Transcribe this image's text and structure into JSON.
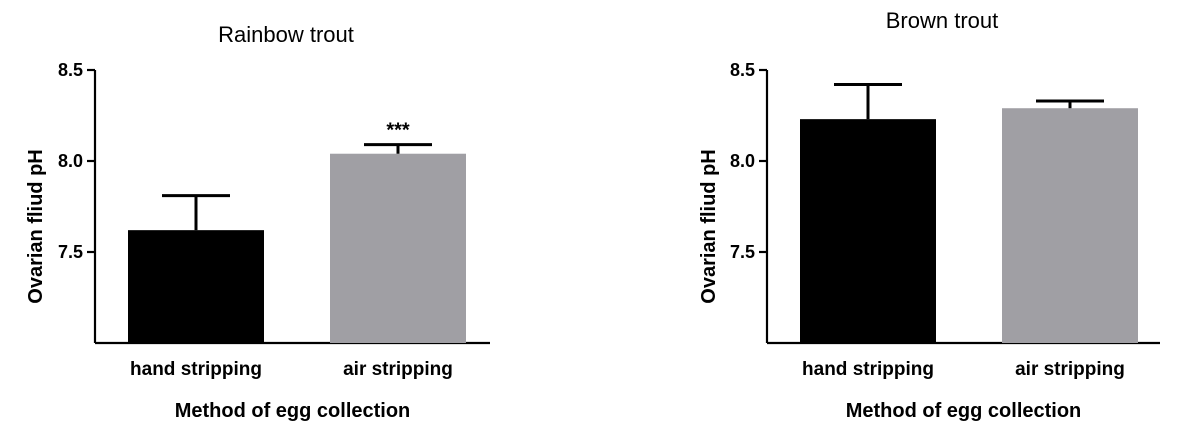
{
  "chart_data": [
    {
      "type": "bar",
      "title": "Rainbow trout",
      "xlabel": "Method of egg collection",
      "ylabel": "Ovarian fliud pH",
      "categories": [
        "hand stripping",
        "air stripping"
      ],
      "values": [
        7.62,
        8.04
      ],
      "errors": [
        0.19,
        0.05
      ],
      "annotations": [
        "",
        "***"
      ],
      "colors": [
        "#000000",
        "#a09fa4"
      ],
      "ylim": [
        7.0,
        8.5
      ],
      "yticks": [
        7.5,
        8.0,
        8.5
      ],
      "ytick_labels": [
        "7.5",
        "8.0",
        "8.5"
      ],
      "grid": false,
      "legend": "none"
    },
    {
      "type": "bar",
      "title": "Brown trout",
      "xlabel": "Method of egg collection",
      "ylabel": "Ovarian fliud pH",
      "categories": [
        "hand stripping",
        "air stripping"
      ],
      "values": [
        8.23,
        8.29
      ],
      "errors": [
        0.19,
        0.04
      ],
      "annotations": [
        "",
        ""
      ],
      "colors": [
        "#000000",
        "#a09fa4"
      ],
      "ylim": [
        7.0,
        8.5
      ],
      "yticks": [
        7.5,
        8.0,
        8.5
      ],
      "ytick_labels": [
        "7.5",
        "8.0",
        "8.5"
      ],
      "grid": false,
      "legend": "none"
    }
  ]
}
